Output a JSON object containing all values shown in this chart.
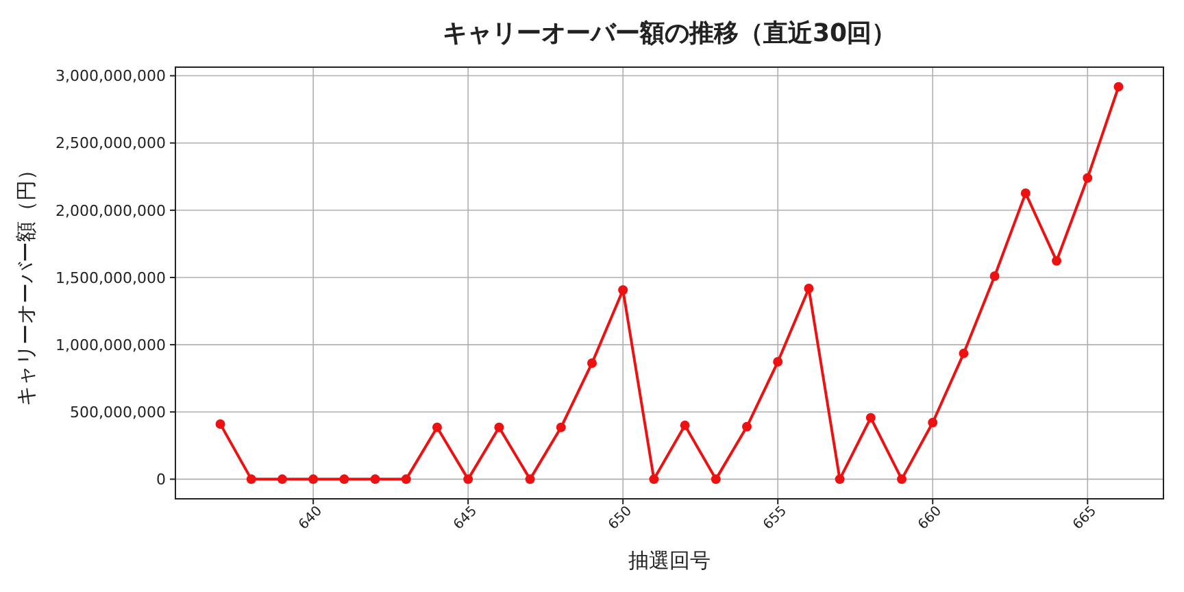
{
  "chart_data": {
    "type": "line",
    "title": "キャリーオーバー額の推移（直近30回）",
    "xlabel": "抽選回号",
    "ylabel": "キャリーオーバー額（円）",
    "x": [
      637,
      638,
      639,
      640,
      641,
      642,
      643,
      644,
      645,
      646,
      647,
      648,
      649,
      650,
      651,
      652,
      653,
      654,
      655,
      656,
      657,
      658,
      659,
      660,
      661,
      662,
      663,
      664,
      665,
      666
    ],
    "series": [
      {
        "color": "#ee1111",
        "values": [
          410000000,
          0,
          0,
          0,
          0,
          0,
          0,
          385000000,
          0,
          385000000,
          0,
          385000000,
          863000000,
          1407000000,
          0,
          400000000,
          0,
          390000000,
          873000000,
          1418000000,
          0,
          457000000,
          0,
          421000000,
          935000000,
          1510000000,
          2127000000,
          1623000000,
          2240000000,
          2918000000
        ]
      }
    ],
    "xlim": [
      635.55,
      667.45
    ],
    "ylim": [
      -145900000,
      3063900000
    ],
    "xticks": [
      640,
      645,
      650,
      655,
      660,
      665
    ],
    "yticks": [
      {
        "value": 0,
        "label": "0"
      },
      {
        "value": 500000000,
        "label": "500,000,000"
      },
      {
        "value": 1000000000,
        "label": "1,000,000,000"
      },
      {
        "value": 1500000000,
        "label": "1,500,000,000"
      },
      {
        "value": 2000000000,
        "label": "2,000,000,000"
      },
      {
        "value": 2500000000,
        "label": "2,500,000,000"
      },
      {
        "value": 3000000000,
        "label": "3,000,000,000"
      }
    ],
    "grid": true,
    "marker": "circle",
    "line_style": "solid"
  }
}
